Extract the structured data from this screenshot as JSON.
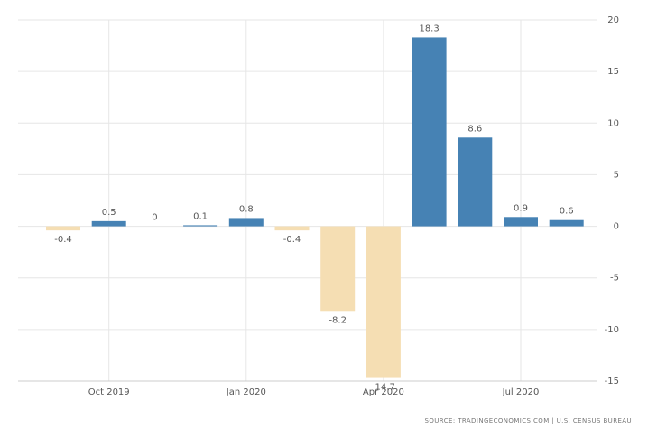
{
  "chart_data": {
    "type": "bar",
    "categories": [
      null,
      "Oct 2019",
      null,
      null,
      "Jan 2020",
      null,
      null,
      "Apr 2020",
      null,
      null,
      "Jul 2020",
      null
    ],
    "values": [
      -0.4,
      0.5,
      0,
      0.1,
      0.8,
      -0.4,
      -8.2,
      -14.7,
      18.3,
      8.6,
      0.9,
      0.6
    ],
    "positive_color": "#4682b4",
    "negative_color": "#f5deb3",
    "ylim": [
      -15,
      20
    ],
    "yticks": [
      -15,
      -10,
      -5,
      0,
      5,
      10,
      15,
      20
    ],
    "grid": true,
    "source": "SOURCE: TRADINGECONOMICS.COM | U.S. CENSUS BUREAU"
  }
}
